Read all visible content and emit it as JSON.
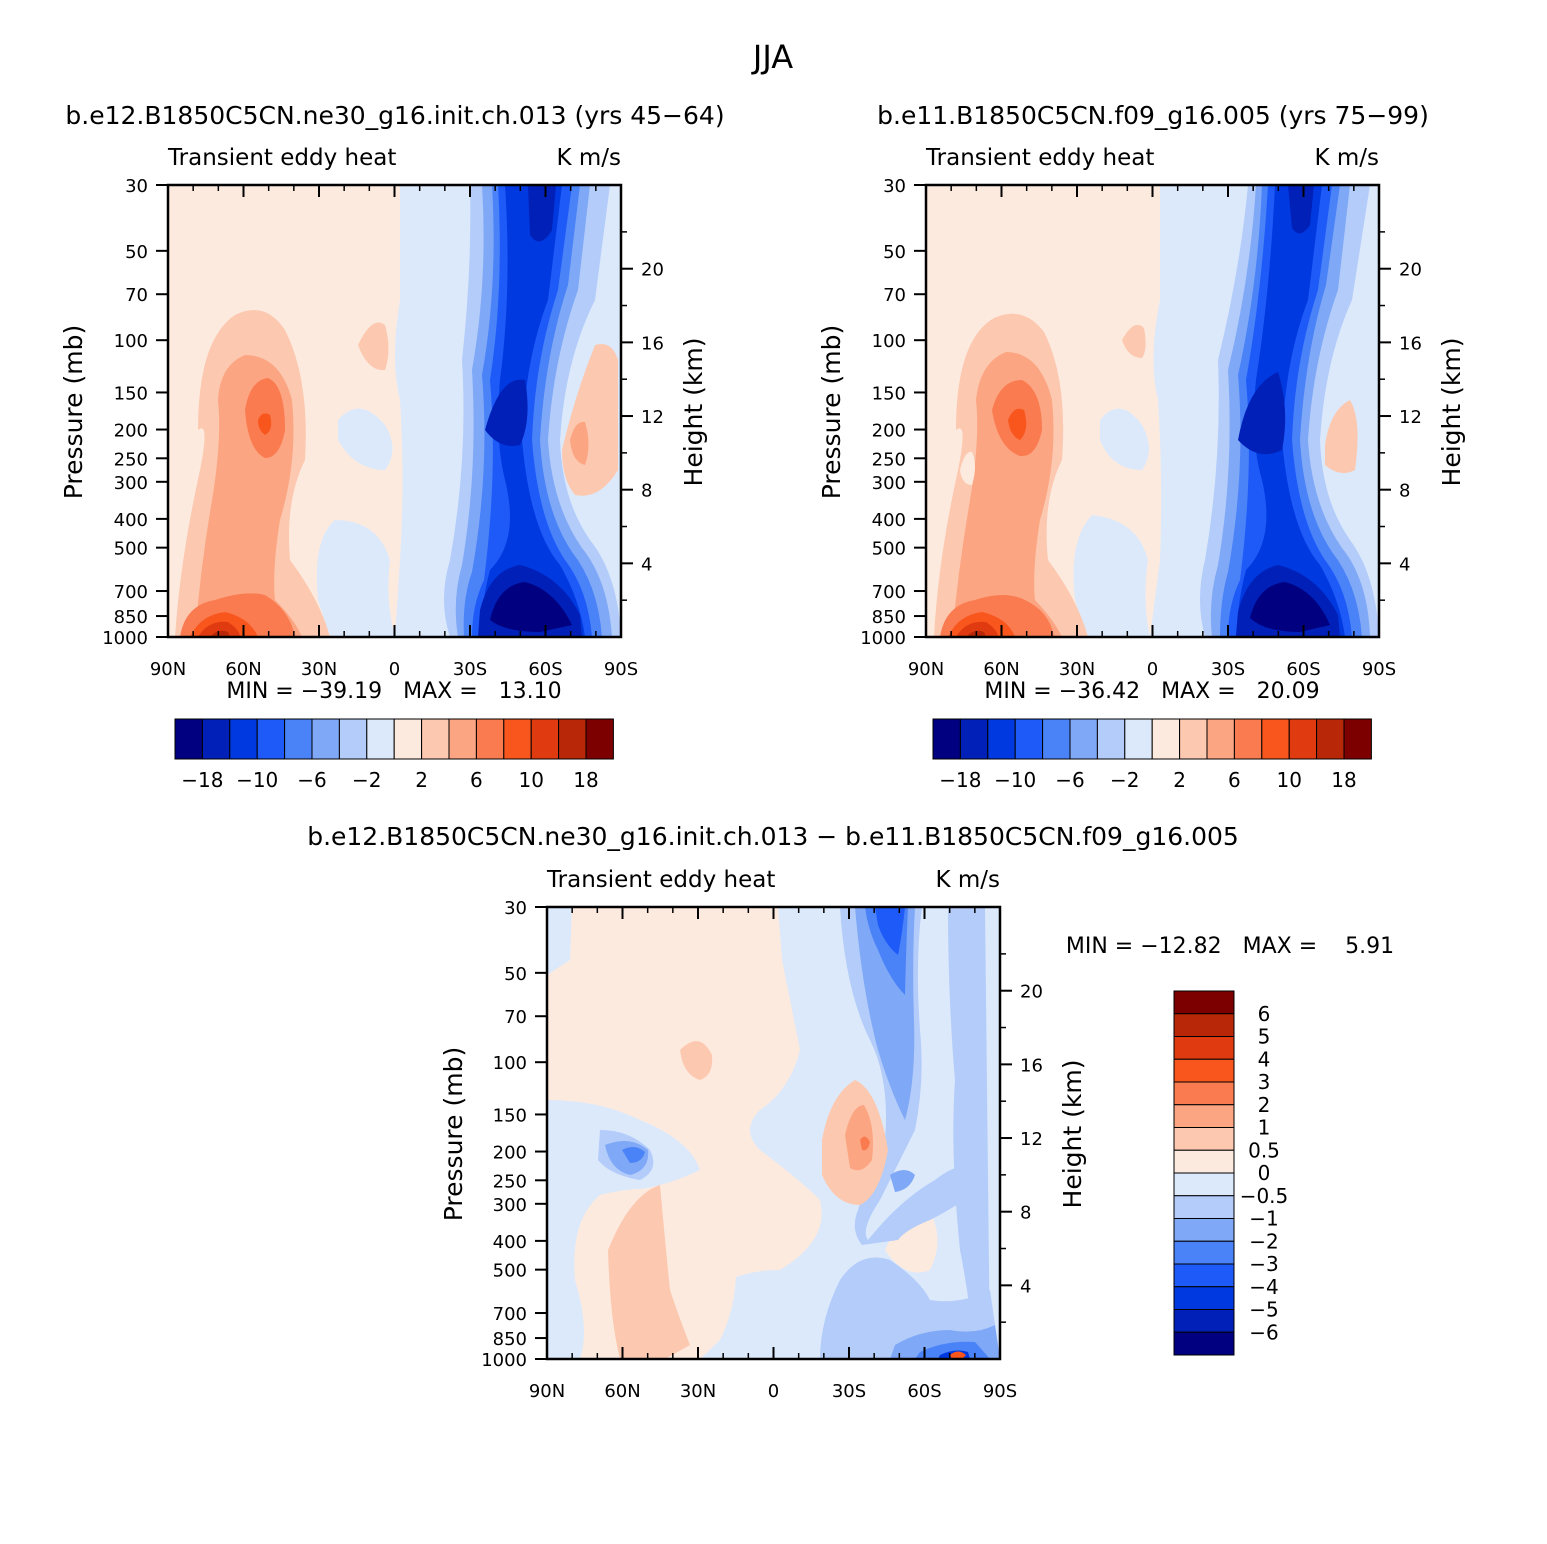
{
  "page": {
    "title": "JJA"
  },
  "chart_data": [
    {
      "type": "heatmap",
      "title": "b.e12.B1850C5CN.ne30_g16.init.ch.013 (yrs 45-64)",
      "subtitle_left": "Transient eddy heat",
      "subtitle_right": "K m/s",
      "ylabel": "Pressure (mb)",
      "ylabel_right": "Height (km)",
      "x_ticks": [
        "90N",
        "60N",
        "30N",
        "0",
        "30S",
        "60S",
        "90S"
      ],
      "y_ticks": [
        "30",
        "50",
        "70",
        "100",
        "150",
        "200",
        "250",
        "300",
        "400",
        "500",
        "700",
        "850",
        "1000"
      ],
      "y2_ticks": [
        "20",
        "16",
        "12",
        "8",
        "4"
      ],
      "stats": "MIN = -39.19   MAX =   13.10",
      "min": -39.19,
      "max": 13.1,
      "colorbar_labels": [
        "-18",
        "-10",
        "-6",
        "-2",
        "2",
        "6",
        "10",
        "18"
      ],
      "colors": [
        "#000080",
        "#0020b8",
        "#0039e0",
        "#1d5af8",
        "#4a82f7",
        "#7fa8f7",
        "#b3ccfa",
        "#dce9fb",
        "#fdeadf",
        "#fcc9b0",
        "#fca582",
        "#fa7b50",
        "#f9561e",
        "#e03a10",
        "#b82808",
        "#7d0000"
      ]
    },
    {
      "type": "heatmap",
      "title": "b.e11.B1850C5CN.f09_g16.005 (yrs 75-99)",
      "subtitle_left": "Transient eddy heat",
      "subtitle_right": "K m/s",
      "ylabel": "Pressure (mb)",
      "ylabel_right": "Height (km)",
      "x_ticks": [
        "90N",
        "60N",
        "30N",
        "0",
        "30S",
        "60S",
        "90S"
      ],
      "y_ticks": [
        "30",
        "50",
        "70",
        "100",
        "150",
        "200",
        "250",
        "300",
        "400",
        "500",
        "700",
        "850",
        "1000"
      ],
      "y2_ticks": [
        "20",
        "16",
        "12",
        "8",
        "4"
      ],
      "stats": "MIN = -36.42   MAX =   20.09",
      "min": -36.42,
      "max": 20.09,
      "colorbar_labels": [
        "-18",
        "-10",
        "-6",
        "-2",
        "2",
        "6",
        "10",
        "18"
      ]
    },
    {
      "type": "heatmap",
      "title": "b.e12.B1850C5CN.ne30_g16.init.ch.013 - b.e11.B1850C5CN.f09_g16.005",
      "subtitle_left": "Transient eddy heat",
      "subtitle_right": "K m/s",
      "ylabel": "Pressure (mb)",
      "ylabel_right": "Height (km)",
      "x_ticks": [
        "90N",
        "60N",
        "30N",
        "0",
        "30S",
        "60S",
        "90S"
      ],
      "y_ticks": [
        "30",
        "50",
        "70",
        "100",
        "150",
        "200",
        "250",
        "300",
        "400",
        "500",
        "700",
        "850",
        "1000"
      ],
      "y2_ticks": [
        "20",
        "16",
        "12",
        "8",
        "4"
      ],
      "stats": "MIN = -12.82   MAX =    5.91",
      "min": -12.82,
      "max": 5.91,
      "colorbar_labels": [
        "6",
        "5",
        "4",
        "3",
        "2",
        "1",
        "0.5",
        "0",
        "-0.5",
        "-1",
        "-2",
        "-3",
        "-4",
        "-5",
        "-6"
      ],
      "colors": [
        "#7d0000",
        "#b82808",
        "#e03a10",
        "#f9561e",
        "#fa7b50",
        "#fca582",
        "#fcc9b0",
        "#fdeadf",
        "#dce9fb",
        "#b3ccfa",
        "#7fa8f7",
        "#4a82f7",
        "#1d5af8",
        "#0039e0",
        "#0020b8",
        "#000080"
      ]
    }
  ]
}
